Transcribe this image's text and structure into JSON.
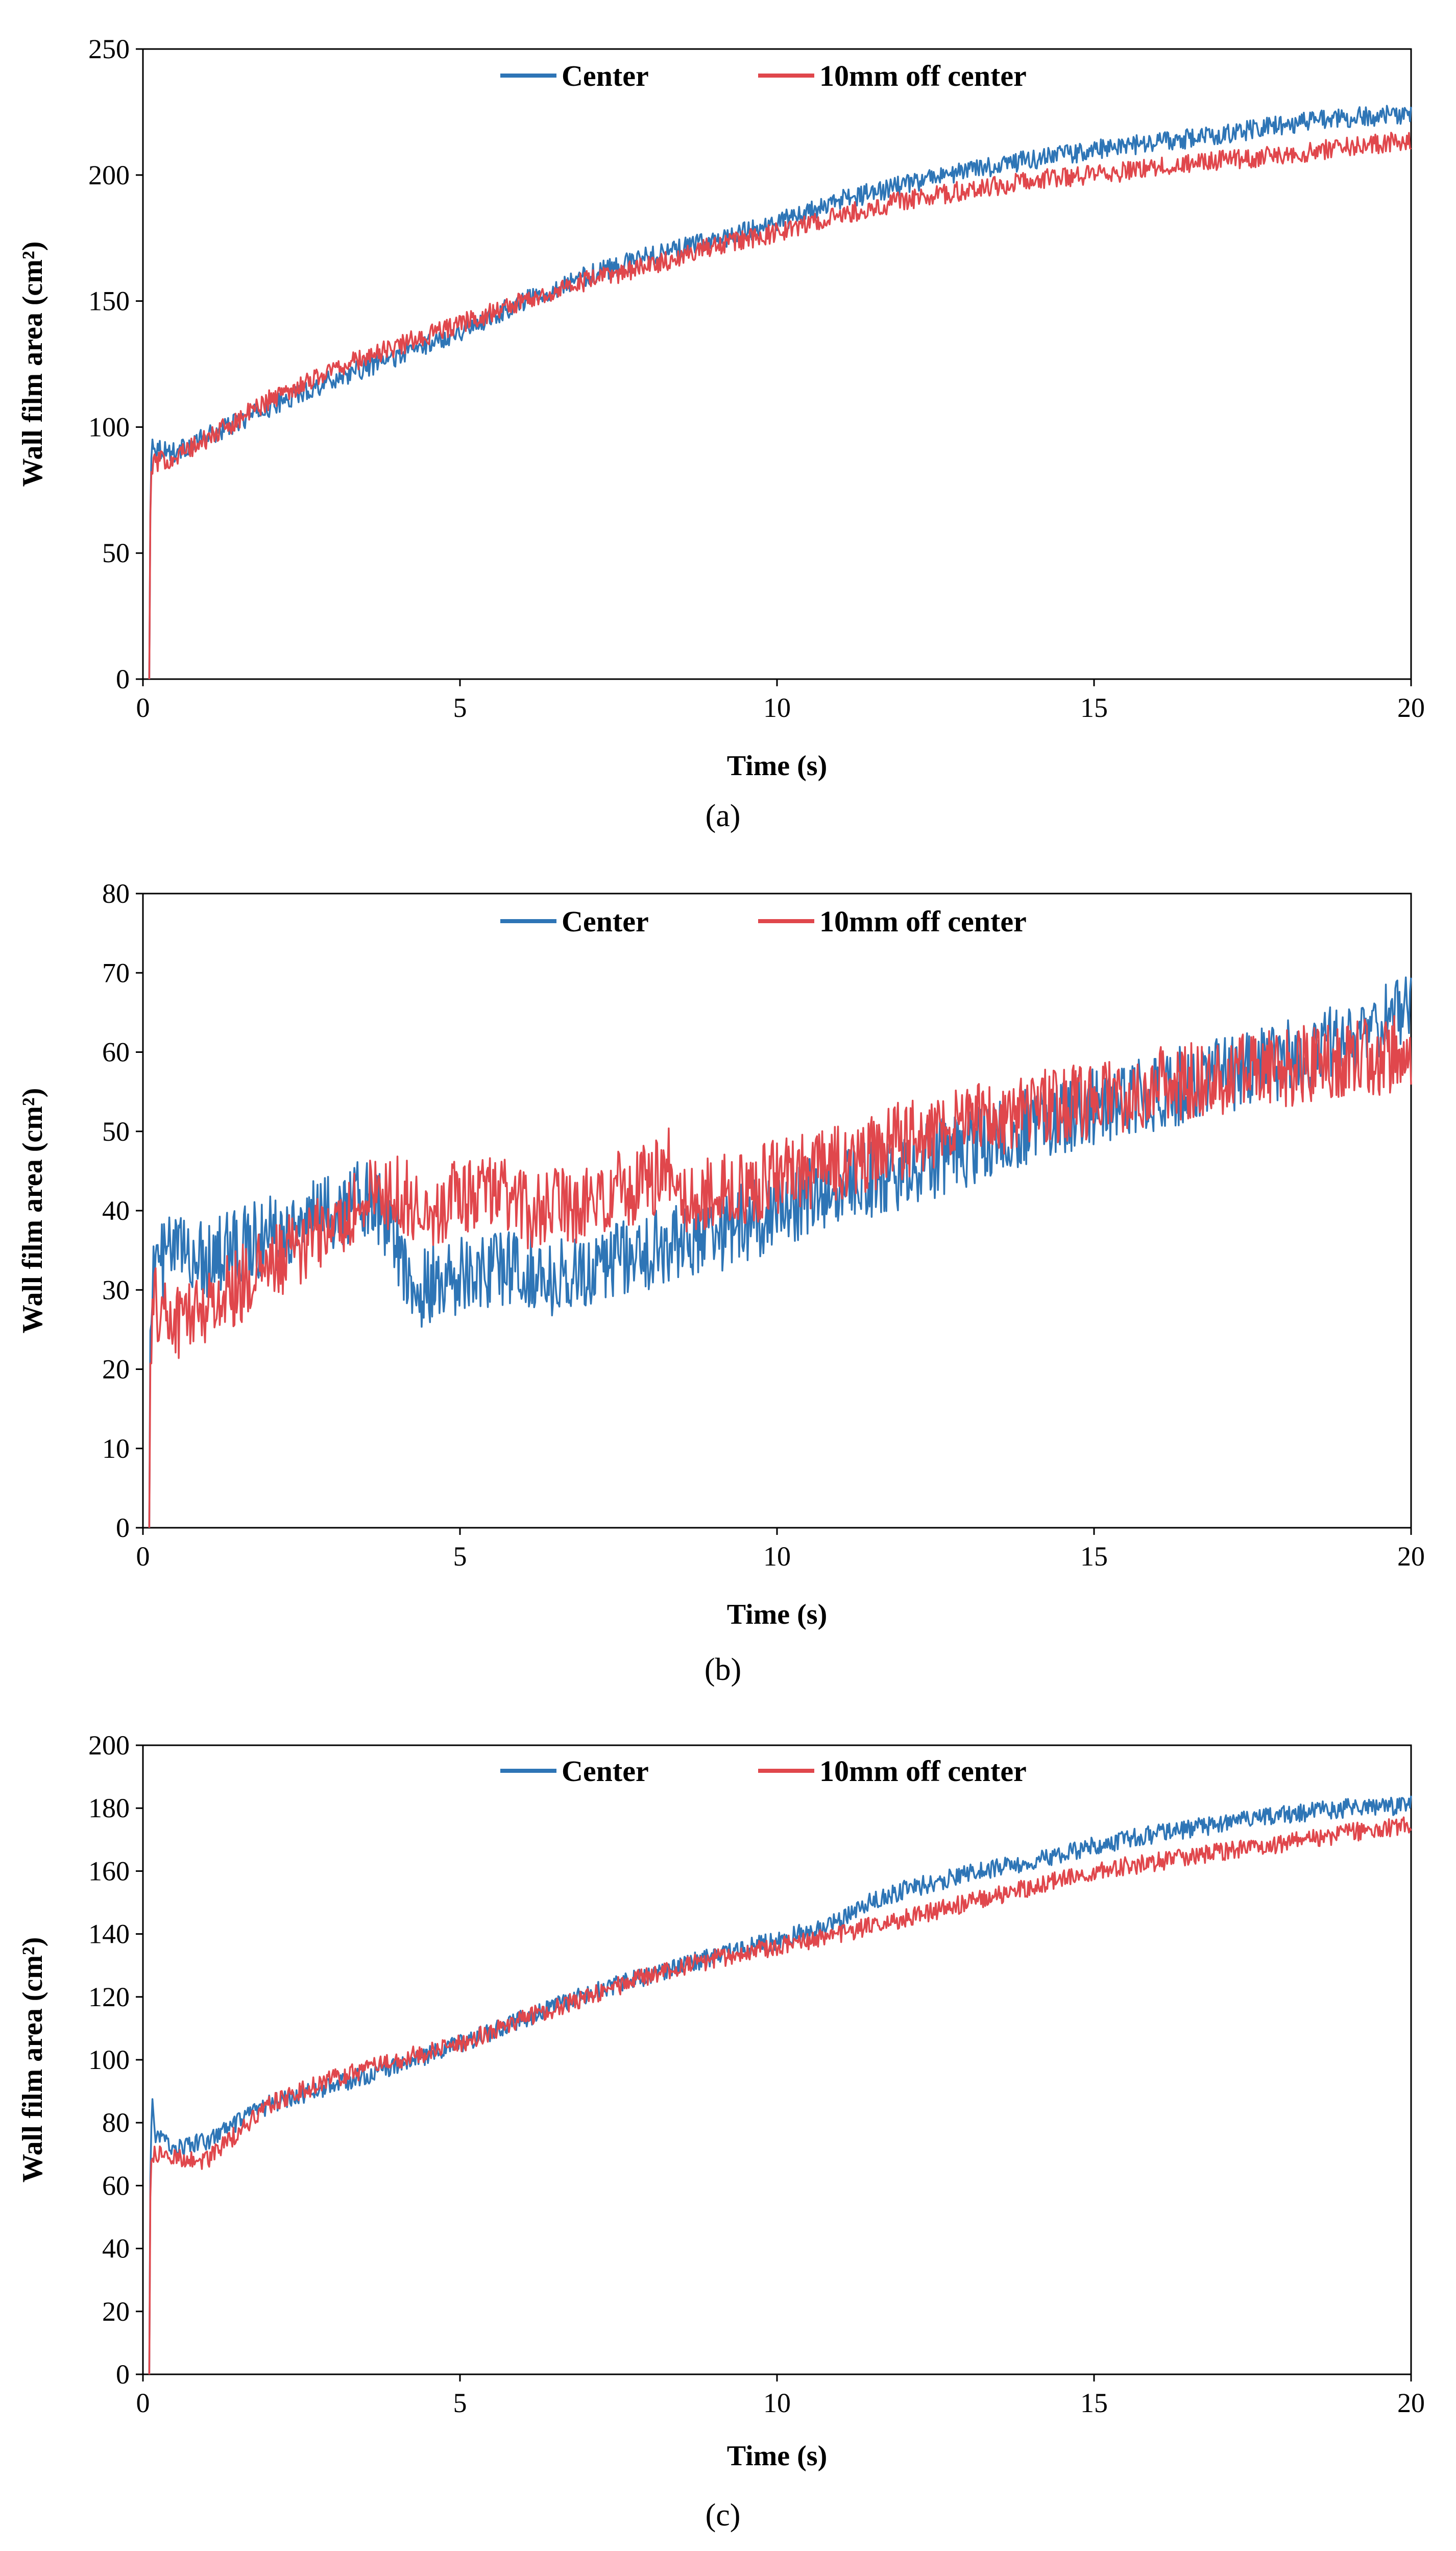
{
  "colors": {
    "center": "#2E75B6",
    "offcenter": "#E0474C"
  },
  "legend": {
    "center": "Center",
    "offcenter": "10mm off center"
  },
  "chart_data": [
    {
      "type": "line",
      "panel_label": "(a)",
      "title": "",
      "xlabel": "Time (s)",
      "ylabel": "Wall film area (cm²)",
      "xlim": [
        0,
        20
      ],
      "ylim": [
        0,
        250
      ],
      "xticks": [
        0,
        5,
        10,
        15,
        20
      ],
      "yticks": [
        0,
        50,
        100,
        150,
        200,
        250
      ],
      "series": [
        {
          "name": "Center",
          "noise": 4,
          "x": [
            0.1,
            0.12,
            0.15,
            0.2,
            0.5,
            1,
            2,
            3,
            4,
            5,
            6,
            7,
            8,
            9,
            10,
            11,
            12,
            13,
            14,
            15,
            16,
            17,
            18,
            19,
            20
          ],
          "y": [
            0,
            80,
            95,
            92,
            90,
            96,
            108,
            119,
            128,
            138,
            150,
            160,
            168,
            174,
            181,
            190,
            196,
            202,
            206,
            210,
            213,
            216,
            220,
            223,
            224
          ]
        },
        {
          "name": "10mm off center",
          "noise": 4,
          "x": [
            0.1,
            0.12,
            0.15,
            0.2,
            0.5,
            1,
            2,
            3,
            4,
            5,
            6,
            7,
            8,
            9,
            10,
            11,
            12,
            13,
            14,
            15,
            16,
            17,
            18,
            19,
            20
          ],
          "y": [
            0,
            78,
            85,
            86,
            88,
            95,
            111,
            123,
            132,
            141,
            150,
            158,
            164,
            172,
            177,
            184,
            190,
            194,
            198,
            200,
            203,
            206,
            208,
            211,
            214
          ]
        }
      ]
    },
    {
      "type": "line",
      "panel_label": "(b)",
      "title": "",
      "xlabel": "Time (s)",
      "ylabel": "Wall film area (cm²)",
      "xlim": [
        0,
        20
      ],
      "ylim": [
        0,
        80
      ],
      "xticks": [
        0,
        5,
        10,
        15,
        20
      ],
      "yticks": [
        0,
        10,
        20,
        30,
        40,
        50,
        60,
        70,
        80
      ],
      "series": [
        {
          "name": "Center",
          "noise": 5,
          "x": [
            0.1,
            0.12,
            0.2,
            0.5,
            1,
            2,
            3,
            3.6,
            4,
            4.3,
            5,
            6,
            6.5,
            7,
            8,
            9,
            10,
            11,
            12,
            13,
            14,
            15,
            16,
            17,
            18,
            19,
            20
          ],
          "y": [
            0,
            30,
            33,
            35,
            34,
            37,
            40,
            42,
            36,
            30,
            32,
            33,
            31,
            33,
            35,
            37,
            40,
            43,
            45,
            48,
            51,
            53,
            55,
            57,
            59,
            62,
            65
          ]
        },
        {
          "name": "10mm off center",
          "noise": 5,
          "x": [
            0.1,
            0.12,
            0.2,
            0.5,
            1,
            2,
            3,
            3.6,
            4,
            4.5,
            5,
            5.5,
            6,
            7,
            8,
            8.3,
            8.5,
            9,
            10,
            11,
            12,
            13,
            14,
            15,
            16,
            17,
            18,
            19,
            20
          ],
          "y": [
            0,
            25,
            28,
            26,
            28,
            33,
            38,
            42,
            42,
            40,
            42,
            43,
            40,
            41,
            44,
            46,
            41,
            42,
            44,
            46,
            49,
            51,
            53,
            54,
            56,
            57,
            58,
            59,
            60
          ]
        }
      ]
    },
    {
      "type": "line",
      "panel_label": "(c)",
      "title": "",
      "xlabel": "Time (s)",
      "ylabel": "Wall film area (cm²)",
      "xlim": [
        0,
        20
      ],
      "ylim": [
        0,
        200
      ],
      "xticks": [
        0,
        5,
        10,
        15,
        20
      ],
      "yticks": [
        0,
        20,
        40,
        60,
        80,
        100,
        120,
        140,
        160,
        180,
        200
      ],
      "series": [
        {
          "name": "Center",
          "noise": 3,
          "x": [
            0.1,
            0.12,
            0.15,
            0.2,
            0.5,
            1,
            2,
            3,
            4,
            5,
            6,
            7,
            8,
            9,
            10,
            11,
            11.4,
            12,
            13,
            14,
            15,
            16,
            17,
            18,
            19,
            20
          ],
          "y": [
            0,
            75,
            85,
            76,
            72,
            74,
            86,
            92,
            98,
            105,
            113,
            121,
            127,
            133,
            138,
            144,
            150,
            154,
            159,
            163,
            168,
            172,
            175,
            178,
            180,
            181
          ]
        },
        {
          "name": "10mm off center",
          "noise": 3,
          "x": [
            0.1,
            0.12,
            0.2,
            0.5,
            1,
            2,
            3,
            4,
            5,
            6,
            7,
            8,
            9,
            10,
            11,
            12,
            13,
            14,
            15,
            16,
            17,
            18,
            19,
            20
          ],
          "y": [
            0,
            68,
            70,
            69,
            68,
            86,
            94,
            100,
            105,
            113,
            120,
            127,
            132,
            136,
            140,
            145,
            150,
            155,
            160,
            163,
            166,
            169,
            172,
            175
          ]
        }
      ]
    }
  ]
}
